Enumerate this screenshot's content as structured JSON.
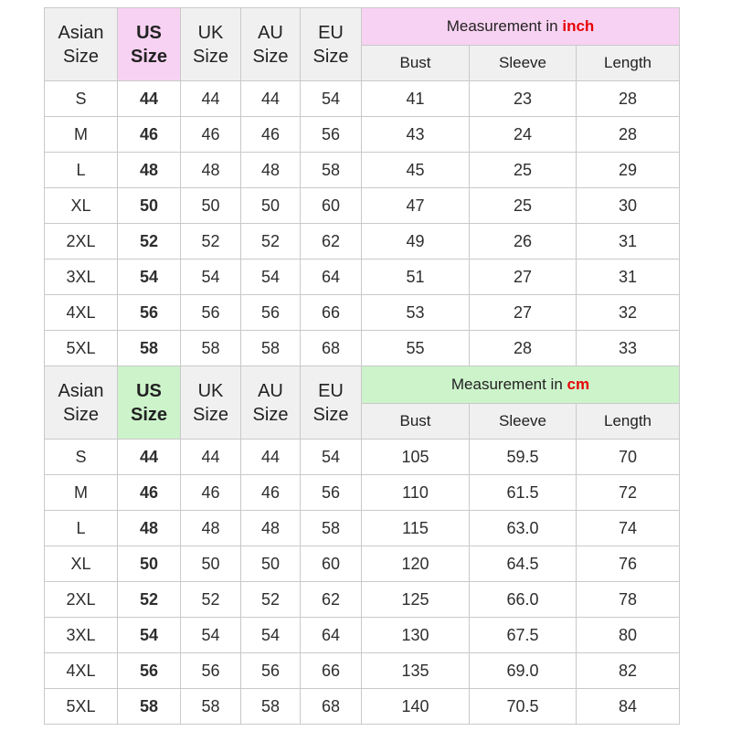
{
  "colors": {
    "accent_inch_pink": "#f8d2f2",
    "accent_cm_green": "#cdf3cb",
    "unit_red": "#e60505",
    "header_gray": "#f0f0f0",
    "border_gray": "#c9c9c9"
  },
  "measurement_prefix": "Measurement in",
  "size_header_lines": [
    [
      "Asian",
      "Size"
    ],
    [
      "US",
      "Size"
    ],
    [
      "UK",
      "Size"
    ],
    [
      "AU",
      "Size"
    ],
    [
      "EU",
      "Size"
    ]
  ],
  "chart_data": [
    {
      "type": "table",
      "title": "Measurement in inch",
      "unit": "inch",
      "columns": [
        "Asian Size",
        "US Size",
        "UK Size",
        "AU Size",
        "EU Size",
        "Bust",
        "Sleeve",
        "Length"
      ],
      "rows": [
        [
          "S",
          "44",
          "44",
          "44",
          "54",
          "41",
          "23",
          "28"
        ],
        [
          "M",
          "46",
          "46",
          "46",
          "56",
          "43",
          "24",
          "28"
        ],
        [
          "L",
          "48",
          "48",
          "48",
          "58",
          "45",
          "25",
          "29"
        ],
        [
          "XL",
          "50",
          "50",
          "50",
          "60",
          "47",
          "25",
          "30"
        ],
        [
          "2XL",
          "52",
          "52",
          "52",
          "62",
          "49",
          "26",
          "31"
        ],
        [
          "3XL",
          "54",
          "54",
          "54",
          "64",
          "51",
          "27",
          "31"
        ],
        [
          "4XL",
          "56",
          "56",
          "56",
          "66",
          "53",
          "27",
          "32"
        ],
        [
          "5XL",
          "58",
          "58",
          "58",
          "68",
          "55",
          "28",
          "33"
        ]
      ]
    },
    {
      "type": "table",
      "title": "Measurement in cm",
      "unit": "cm",
      "columns": [
        "Asian Size",
        "US Size",
        "UK Size",
        "AU Size",
        "EU Size",
        "Bust",
        "Sleeve",
        "Length"
      ],
      "rows": [
        [
          "S",
          "44",
          "44",
          "44",
          "54",
          "105",
          "59.5",
          "70"
        ],
        [
          "M",
          "46",
          "46",
          "46",
          "56",
          "110",
          "61.5",
          "72"
        ],
        [
          "L",
          "48",
          "48",
          "48",
          "58",
          "115",
          "63.0",
          "74"
        ],
        [
          "XL",
          "50",
          "50",
          "50",
          "60",
          "120",
          "64.5",
          "76"
        ],
        [
          "2XL",
          "52",
          "52",
          "52",
          "62",
          "125",
          "66.0",
          "78"
        ],
        [
          "3XL",
          "54",
          "54",
          "54",
          "64",
          "130",
          "67.5",
          "80"
        ],
        [
          "4XL",
          "56",
          "56",
          "56",
          "66",
          "135",
          "69.0",
          "82"
        ],
        [
          "5XL",
          "58",
          "58",
          "58",
          "68",
          "140",
          "70.5",
          "84"
        ]
      ]
    }
  ]
}
